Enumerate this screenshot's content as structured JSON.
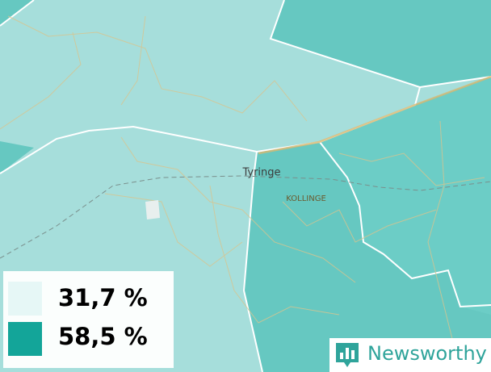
{
  "map": {
    "places": [
      {
        "label": "Tyringe"
      },
      {
        "label": "KOLLINGE"
      }
    ],
    "legend": [
      {
        "label": "31,7 %",
        "color": "#e6f7f6"
      },
      {
        "label": "58,5 %",
        "color": "#13a599"
      }
    ],
    "brand": "Newsworthy"
  }
}
